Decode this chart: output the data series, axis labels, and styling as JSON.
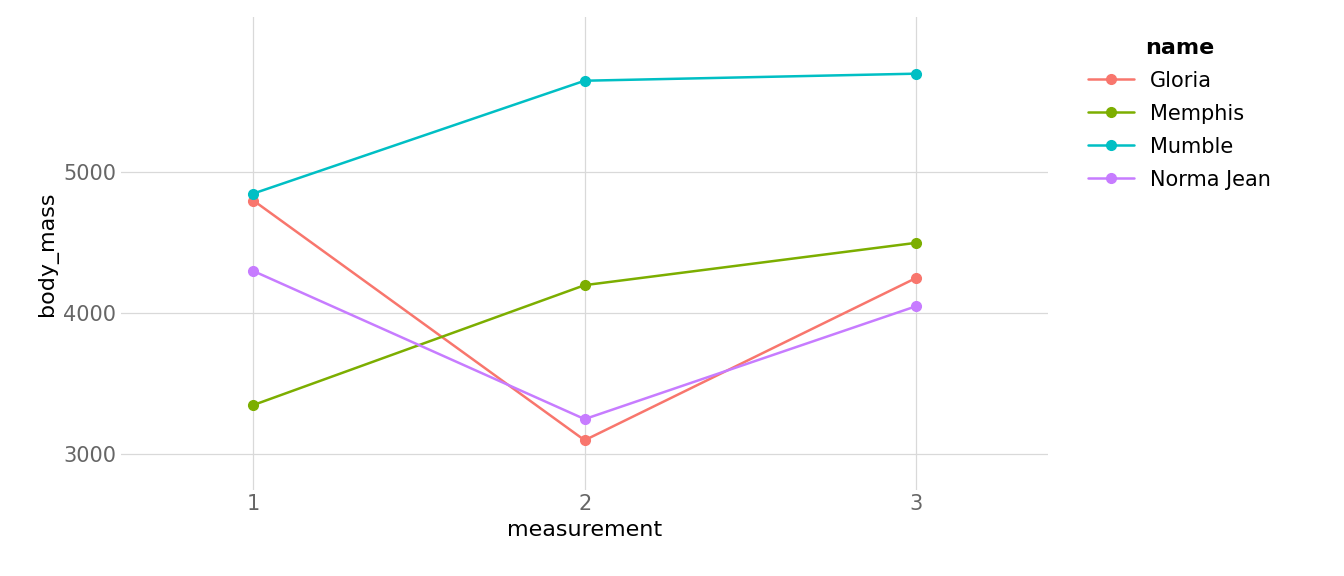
{
  "series": {
    "Gloria": {
      "x": [
        1,
        2,
        3
      ],
      "y": [
        4800,
        3100,
        4250
      ],
      "color": "#F8766D"
    },
    "Memphis": {
      "x": [
        1,
        2,
        3
      ],
      "y": [
        3350,
        4200,
        4500
      ],
      "color": "#7CAE00"
    },
    "Mumble": {
      "x": [
        1,
        2,
        3
      ],
      "y": [
        4850,
        5650,
        5700
      ],
      "color": "#00BFC4"
    },
    "Norma Jean": {
      "x": [
        1,
        2,
        3
      ],
      "y": [
        4300,
        3250,
        4050
      ],
      "color": "#C77CFF"
    }
  },
  "xlabel": "measurement",
  "ylabel": "body_mass",
  "legend_title": "name",
  "xlim": [
    0.6,
    3.4
  ],
  "ylim": [
    2750,
    6100
  ],
  "xticks": [
    1,
    2,
    3
  ],
  "yticks": [
    3000,
    4000,
    5000
  ],
  "background_color": "#ffffff",
  "panel_background": "#ffffff",
  "grid_color": "#d9d9d9",
  "label_fontsize": 16,
  "tick_fontsize": 15,
  "legend_title_fontsize": 16,
  "legend_fontsize": 15,
  "line_width": 1.8,
  "marker_size": 7
}
